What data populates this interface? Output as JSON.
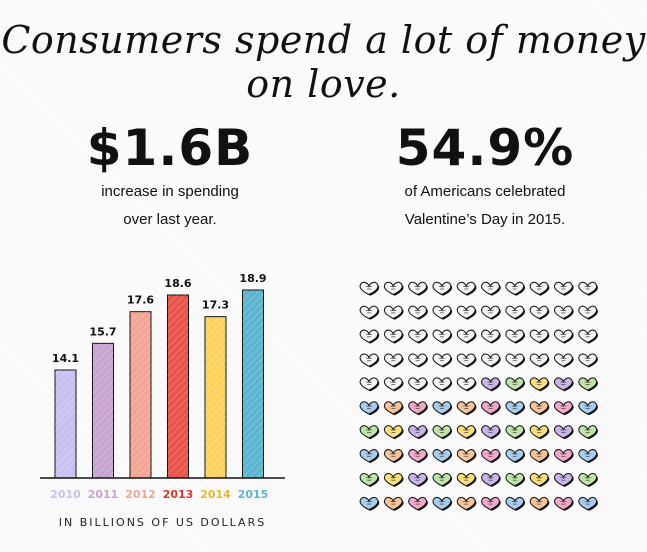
{
  "title": "Consumers spend a lot of money on love.",
  "stat_spending": {
    "value": "$1.6B",
    "line1": "increase in spending",
    "line2": "over last year."
  },
  "stat_celebrated": {
    "value": "54.9%",
    "line1": "of Americans celebrated",
    "line2": "Valentine’s Day in 2015."
  },
  "chart_data": {
    "type": "bar",
    "categories": [
      "2010",
      "2011",
      "2012",
      "2013",
      "2014",
      "2015"
    ],
    "values": [
      14.1,
      15.7,
      17.6,
      18.6,
      17.3,
      18.9
    ],
    "colors": [
      "#c9c0f2",
      "#c7a4d0",
      "#f2a593",
      "#e8534a",
      "#fbd35c",
      "#5db4cf"
    ],
    "ylabel": "IN BILLIONS OF US DOLLARS",
    "ylim": [
      0,
      20
    ]
  },
  "hearts_chart": {
    "type": "waffle",
    "rows": 10,
    "cols": 10,
    "filled_percent": 54.9,
    "empty_color": "#f4f4f4",
    "filled_colors": [
      "#bfe6a8",
      "#f4a7c8",
      "#fbe07a",
      "#a8cdef",
      "#c9b5ea",
      "#f9c39a"
    ]
  }
}
